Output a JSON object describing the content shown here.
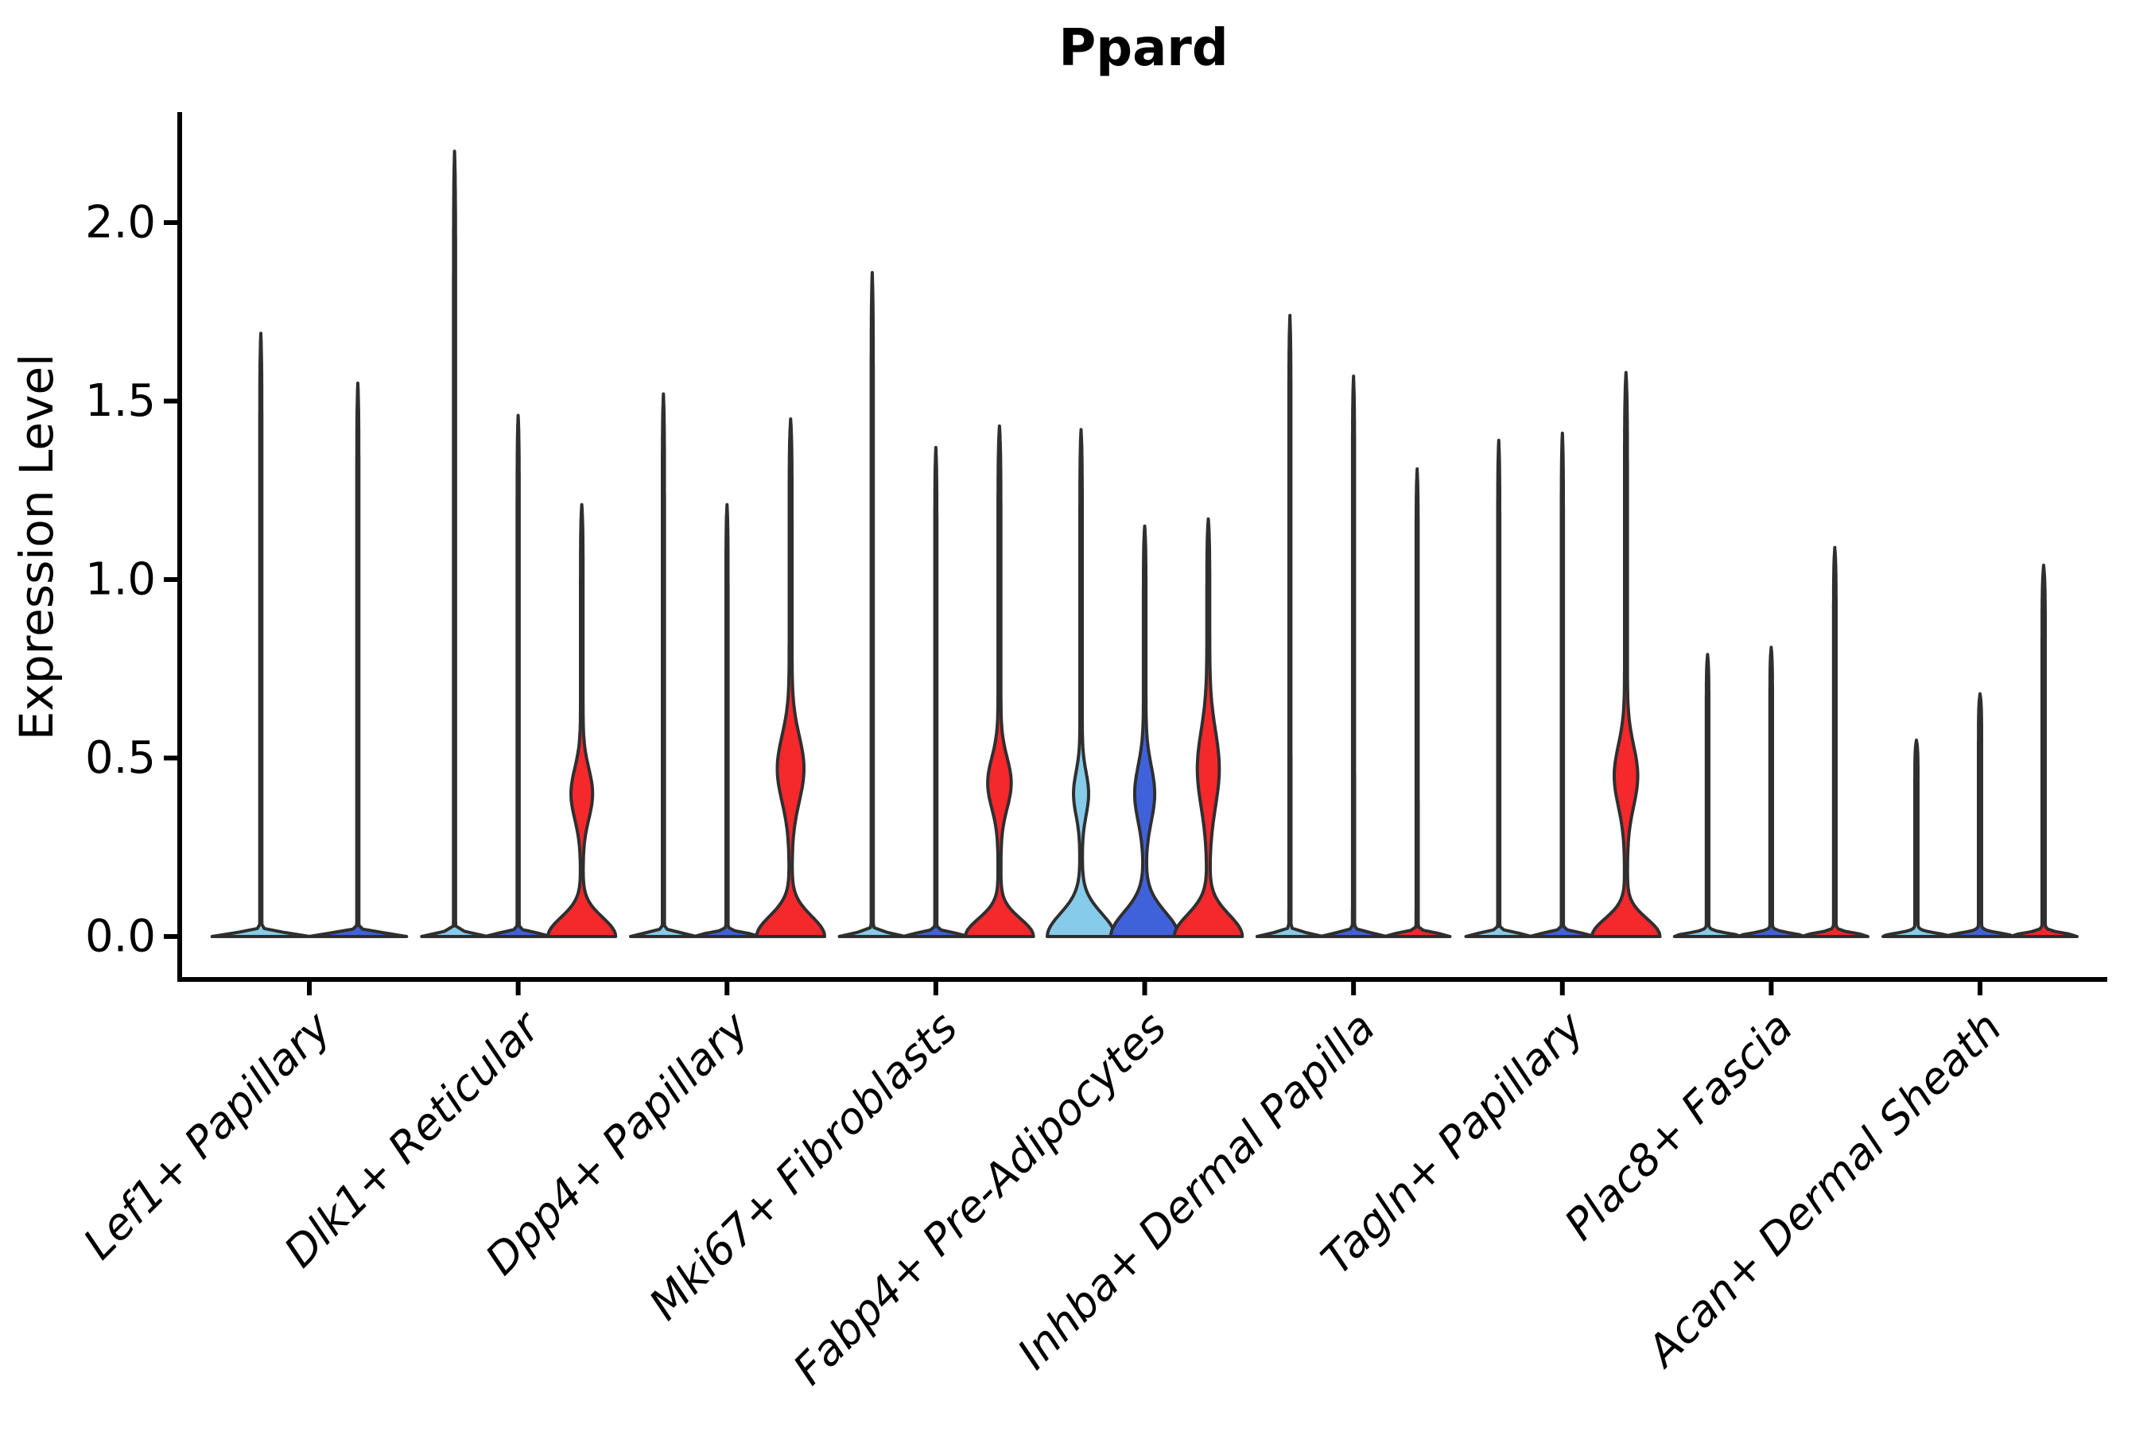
{
  "figure": {
    "title": "Ppard",
    "background": "#ffffff"
  },
  "axes": {
    "ylabel": "Expression Level",
    "yticks": [
      {
        "value": 0.0,
        "label": "0.0"
      },
      {
        "value": 0.5,
        "label": "0.5"
      },
      {
        "value": 1.0,
        "label": "1.0"
      },
      {
        "value": 1.5,
        "label": "1.5"
      },
      {
        "value": 2.0,
        "label": "2.0"
      }
    ]
  },
  "palette": {
    "split_1": "#87CBEA",
    "split_2": "#3F62DB",
    "split_3": "#F5282C",
    "outline": "#2F2F2F",
    "axis": "#000000",
    "text": "#000000"
  },
  "chart_data": {
    "type": "violin",
    "title": "Ppard",
    "xlabel": "",
    "ylabel": "Expression Level",
    "ylim": [
      -0.12,
      2.31
    ],
    "ytick_values": [
      0.0,
      0.5,
      1.0,
      1.5,
      2.0
    ],
    "grid": false,
    "legend": "none",
    "n_splits_per_category": 3,
    "categories": [
      "Lef1+ Papillary",
      "Dlk1+ Reticular",
      "Dpp4+ Papillary",
      "Mki67+ Fibroblasts",
      "Fabp4+ Pre-Adipocytes",
      "Inhba+ Dermal Papilla",
      "Tagln+ Papillary",
      "Plac8+ Fascia",
      "Acan+ Dermal Sheath"
    ],
    "groups": [
      {
        "category": "Lef1+ Papillary",
        "violins": [
          {
            "split": 1,
            "max_expression": 1.69,
            "shape": {
              "offset": -61,
              "base_hw": 60,
              "base_sigma": 0.013,
              "spike_hw": 1.3,
              "bulge": null
            }
          },
          {
            "split": 2,
            "max_expression": 1.55,
            "shape": {
              "offset": 61,
              "base_hw": 60,
              "base_sigma": 0.013,
              "spike_hw": 1.3,
              "bulge": null
            }
          }
        ]
      },
      {
        "category": "Dlk1+ Reticular",
        "violins": [
          {
            "split": 1,
            "max_expression": 2.2,
            "shape": {
              "offset": -80,
              "base_hw": 40,
              "base_sigma": 0.013,
              "spike_hw": 1.3,
              "bulge": null
            }
          },
          {
            "split": 2,
            "max_expression": 1.46,
            "shape": {
              "offset": 0,
              "base_hw": 40,
              "base_sigma": 0.013,
              "spike_hw": 1.3,
              "bulge": null
            }
          },
          {
            "split": 3,
            "max_expression": 1.21,
            "shape": {
              "offset": 80,
              "base_hw": 41,
              "base_sigma": 0.075,
              "spike_hw": 1.6,
              "bulge": {
                "c": 0.4,
                "s": 0.1,
                "hw": 12
              }
            }
          }
        ]
      },
      {
        "category": "Dpp4+ Papillary",
        "violins": [
          {
            "split": 1,
            "max_expression": 1.52,
            "shape": {
              "offset": -80,
              "base_hw": 40,
              "base_sigma": 0.013,
              "spike_hw": 1.3,
              "bulge": null
            }
          },
          {
            "split": 2,
            "max_expression": 1.21,
            "shape": {
              "offset": 0,
              "base_hw": 40,
              "base_sigma": 0.013,
              "spike_hw": 1.3,
              "bulge": null
            }
          },
          {
            "split": 3,
            "max_expression": 1.45,
            "shape": {
              "offset": 80,
              "base_hw": 41,
              "base_sigma": 0.08,
              "spike_hw": 1.8,
              "bulge": {
                "c": 0.47,
                "s": 0.13,
                "hw": 15
              }
            }
          }
        ]
      },
      {
        "category": "Mki67+ Fibroblasts",
        "violins": [
          {
            "split": 1,
            "max_expression": 1.86,
            "shape": {
              "offset": -80,
              "base_hw": 40,
              "base_sigma": 0.013,
              "spike_hw": 1.3,
              "bulge": null
            }
          },
          {
            "split": 2,
            "max_expression": 1.37,
            "shape": {
              "offset": 0,
              "base_hw": 40,
              "base_sigma": 0.013,
              "spike_hw": 1.3,
              "bulge": null
            }
          },
          {
            "split": 3,
            "max_expression": 1.43,
            "shape": {
              "offset": 80,
              "base_hw": 41,
              "base_sigma": 0.07,
              "spike_hw": 1.8,
              "bulge": {
                "c": 0.43,
                "s": 0.1,
                "hw": 13
              }
            }
          }
        ]
      },
      {
        "category": "Fabp4+ Pre-Adipocytes",
        "violins": [
          {
            "split": 1,
            "max_expression": 1.42,
            "shape": {
              "offset": -80,
              "base_hw": 41,
              "base_sigma": 0.09,
              "spike_hw": 1.5,
              "bulge": {
                "c": 0.4,
                "s": 0.085,
                "hw": 8
              }
            }
          },
          {
            "split": 2,
            "max_expression": 1.15,
            "shape": {
              "offset": 0,
              "base_hw": 41,
              "base_sigma": 0.095,
              "spike_hw": 1.6,
              "bulge": {
                "c": 0.4,
                "s": 0.11,
                "hw": 11
              }
            }
          },
          {
            "split": 3,
            "max_expression": 1.17,
            "shape": {
              "offset": 80,
              "base_hw": 41,
              "base_sigma": 0.085,
              "spike_hw": 1.8,
              "bulge": {
                "c": 0.47,
                "s": 0.15,
                "hw": 12
              }
            }
          }
        ]
      },
      {
        "category": "Inhba+ Dermal Papilla",
        "violins": [
          {
            "split": 1,
            "max_expression": 1.74,
            "shape": {
              "offset": -80,
              "base_hw": 40,
              "base_sigma": 0.013,
              "spike_hw": 1.3,
              "bulge": null
            }
          },
          {
            "split": 2,
            "max_expression": 1.57,
            "shape": {
              "offset": 0,
              "base_hw": 40,
              "base_sigma": 0.013,
              "spike_hw": 1.3,
              "bulge": null
            }
          },
          {
            "split": 3,
            "max_expression": 1.31,
            "shape": {
              "offset": 80,
              "base_hw": 40,
              "base_sigma": 0.013,
              "spike_hw": 1.3,
              "bulge": null
            }
          }
        ]
      },
      {
        "category": "Tagln+ Papillary",
        "violins": [
          {
            "split": 1,
            "max_expression": 1.39,
            "shape": {
              "offset": -80,
              "base_hw": 40,
              "base_sigma": 0.013,
              "spike_hw": 1.3,
              "bulge": null
            }
          },
          {
            "split": 2,
            "max_expression": 1.41,
            "shape": {
              "offset": 0,
              "base_hw": 40,
              "base_sigma": 0.013,
              "spike_hw": 1.3,
              "bulge": null
            }
          },
          {
            "split": 3,
            "max_expression": 1.58,
            "shape": {
              "offset": 80,
              "base_hw": 41,
              "base_sigma": 0.07,
              "spike_hw": 1.8,
              "bulge": {
                "c": 0.45,
                "s": 0.12,
                "hw": 13
              }
            }
          }
        ]
      },
      {
        "category": "Plac8+ Fascia",
        "violins": [
          {
            "split": 1,
            "max_expression": 0.79,
            "shape": {
              "offset": -80,
              "base_hw": 40,
              "base_sigma": 0.013,
              "spike_hw": 1.6,
              "bulge": null
            }
          },
          {
            "split": 2,
            "max_expression": 0.81,
            "shape": {
              "offset": 0,
              "base_hw": 40,
              "base_sigma": 0.013,
              "spike_hw": 1.6,
              "bulge": null
            }
          },
          {
            "split": 3,
            "max_expression": 1.09,
            "shape": {
              "offset": 80,
              "base_hw": 40,
              "base_sigma": 0.013,
              "spike_hw": 1.6,
              "bulge": null
            }
          }
        ]
      },
      {
        "category": "Acan+ Dermal Sheath",
        "violins": [
          {
            "split": 1,
            "max_expression": 0.55,
            "shape": {
              "offset": -80,
              "base_hw": 40,
              "base_sigma": 0.013,
              "spike_hw": 2.0,
              "bulge": null
            }
          },
          {
            "split": 2,
            "max_expression": 0.68,
            "shape": {
              "offset": 0,
              "base_hw": 40,
              "base_sigma": 0.013,
              "spike_hw": 2.0,
              "bulge": null
            }
          },
          {
            "split": 3,
            "max_expression": 1.04,
            "shape": {
              "offset": 80,
              "base_hw": 40,
              "base_sigma": 0.013,
              "spike_hw": 2.0,
              "bulge": null
            }
          }
        ]
      }
    ]
  }
}
